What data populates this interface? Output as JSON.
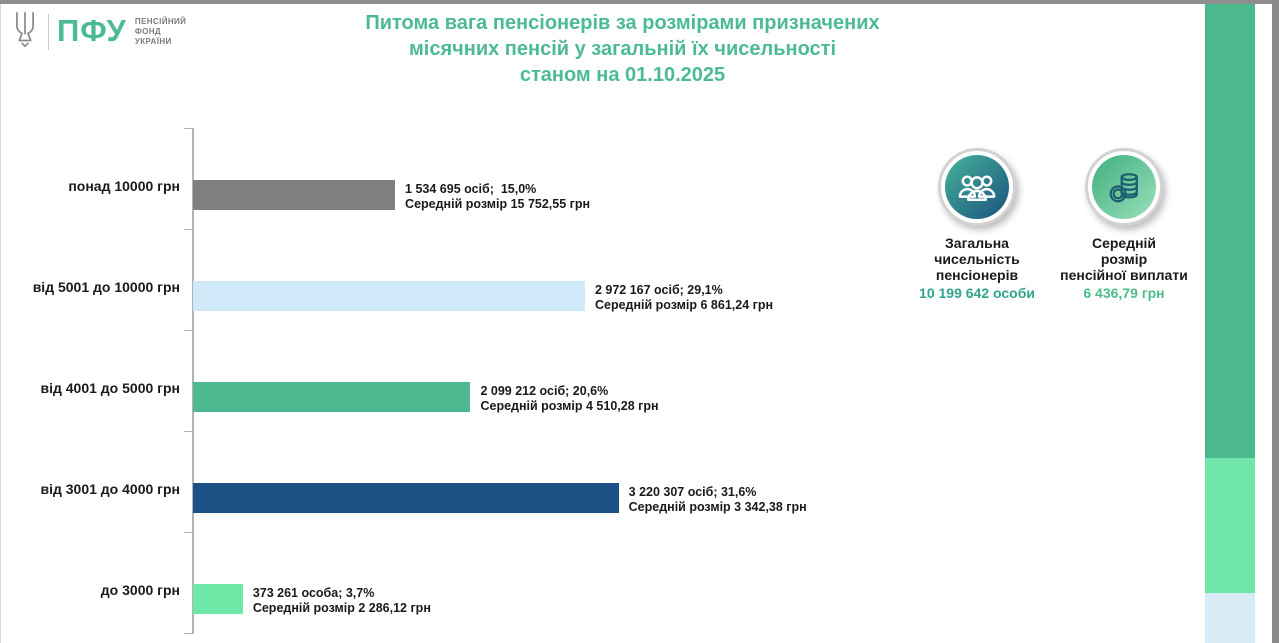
{
  "logo": {
    "abbr": "ПФУ",
    "org_lines": [
      "ПЕНСІЙНИЙ",
      "ФОНД",
      "УКРАЇНИ"
    ]
  },
  "title": {
    "lines": [
      "Питома вага пенсіонерів за розмірами призначених",
      "місячних пенсій у загальній їх чисельності",
      "станом на 01.10.2025"
    ]
  },
  "chart_data": {
    "type": "bar",
    "orientation": "horizontal",
    "title": "Питома вага пенсіонерів за розмірами призначених місячних пенсій у загальній їх чисельності станом на 01.10.2025",
    "value_unit": "% від загальної чисельності",
    "xlim": [
      0,
      35
    ],
    "categories": [
      "понад 10000 грн",
      "від 5001 до 10000 грн",
      "від 4001 до 5000 грн",
      "від 3001 до 4000 грн",
      "до 3000 грн"
    ],
    "values": [
      15.0,
      29.1,
      20.6,
      31.6,
      3.7
    ],
    "bars": [
      {
        "category": "понад 10000 грн",
        "percent": 15.0,
        "count": 1534695,
        "avg_pension": "15 752,55",
        "count_label": "1 534 695 осіб;  15,0%",
        "avg_label": "Середній розмір 15 752,55 грн",
        "color": "#7f7f7f"
      },
      {
        "category": "від 5001 до 10000 грн",
        "percent": 29.1,
        "count": 2972167,
        "avg_pension": "6 861,24",
        "count_label": "2 972 167 осіб; 29,1%",
        "avg_label": "Середній розмір 6 861,24 грн",
        "color": "#cfe9f8"
      },
      {
        "category": "від 4001 до 5000 грн",
        "percent": 20.6,
        "count": 2099212,
        "avg_pension": "4 510,28",
        "count_label": "2 099 212 осіб; 20,6%",
        "avg_label": "Середній розмір 4 510,28 грн",
        "color": "#4eb990"
      },
      {
        "category": "від 3001 до 4000 грн",
        "percent": 31.6,
        "count": 3220307,
        "avg_pension": "3 342,38",
        "count_label": "3 220 307 осіб; 31,6%",
        "avg_label": "Середній розмір 3 342,38 грн",
        "color": "#1c5185"
      },
      {
        "category": "до 3000 грн",
        "percent": 3.7,
        "count": 373261,
        "avg_pension": "2 286,12",
        "count_label": "373 261 особа; 3,7%",
        "avg_label": "Середній розмір 2 286,12 грн",
        "color": "#6ee7a7"
      }
    ]
  },
  "stats": [
    {
      "icon": "people-group-icon",
      "label_lines": [
        "Загальна",
        "чисельність",
        "пенсіонерів"
      ],
      "value": "10 199 642 особи",
      "value_color": "#2fa38e",
      "circle_gradient": [
        "#45b49c",
        "#1b517e"
      ]
    },
    {
      "icon": "coins-icon",
      "label_lines": [
        "Середній",
        "розмір",
        "пенсійної виплати"
      ],
      "value": "6 436,79 грн",
      "value_color": "#4bbd8a",
      "circle_gradient": [
        "#3fae7e",
        "#9be0bb"
      ]
    }
  ],
  "colors": {
    "accent_green": "#4cbb92",
    "logo_gray": "#8a8a8a",
    "side_strip": [
      "#4cb88e",
      "#70e7a8",
      "#d8ecf8"
    ]
  }
}
